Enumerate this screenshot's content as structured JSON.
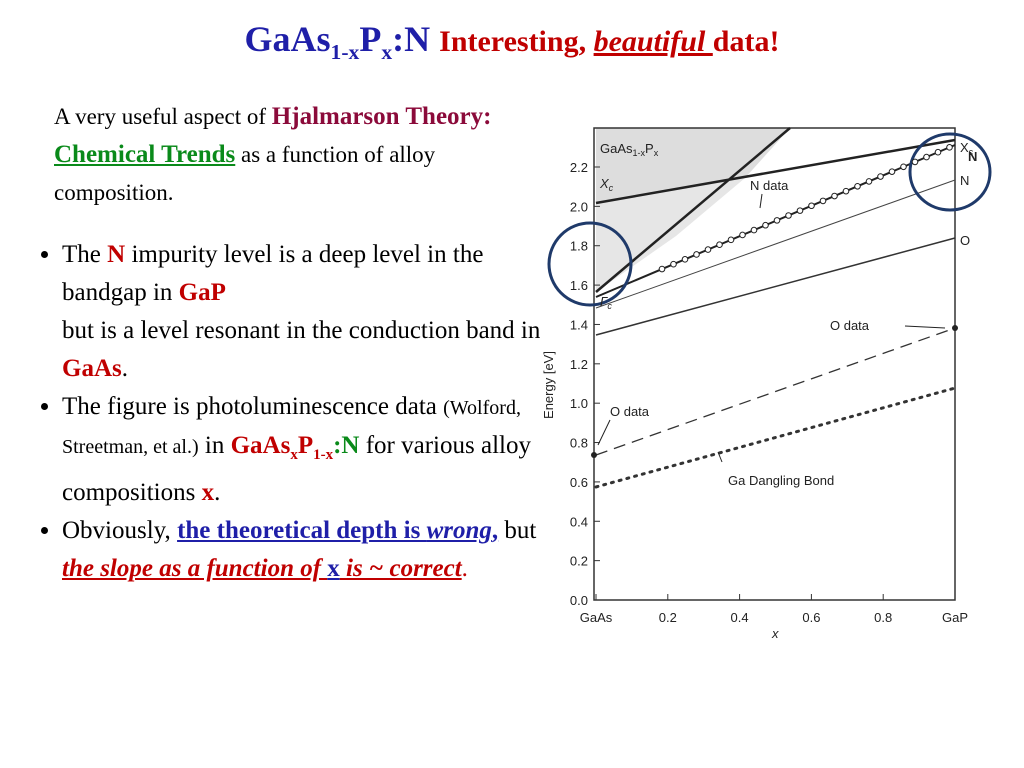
{
  "title": {
    "parts": [
      "GaAs",
      "1-x",
      "P",
      "x",
      ":N",
      "Interesting, ",
      "beautiful ",
      "data!"
    ]
  },
  "intro": {
    "parts": [
      "A very useful aspect of ",
      "Hjalmarson Theory:",
      " ",
      "Chemical Trends",
      " as a function of alloy composition."
    ]
  },
  "bullets": [
    [
      "The ",
      "N",
      " impurity level is a deep level in the bandgap in ",
      "GaP",
      "but is a level resonant in the conduction band in ",
      "GaAs",
      "."
    ],
    [
      "The figure is photoluminescence data ",
      "(Wolford, Streetman, et al.)",
      " in ",
      "GaAs",
      "x",
      "P",
      "1-x",
      ":N",
      " for various alloy compositions ",
      "x",
      "."
    ],
    [
      "Obviously, ",
      "the theoretical depth is ",
      "wrong",
      ",",
      " but ",
      "the slope as a function of ",
      "x",
      " is ~ correct",
      "."
    ]
  ],
  "figure": {
    "yticks": [
      "0.0",
      "0.2",
      "0.4",
      "0.6",
      "0.8",
      "1.0",
      "1.2",
      "1.4",
      "1.6",
      "1.8",
      "2.0",
      "2.2"
    ],
    "xticks": [
      "GaAs",
      "0.2",
      "0.4",
      "0.6",
      "0.8",
      "GaP"
    ],
    "ylabel": "Energy  [eV]",
    "xlabel": "x",
    "inner_title": [
      "GaAs",
      "1-x",
      "P",
      "x"
    ],
    "labels": {
      "xc_left": "X",
      "xc_left_sub": "c",
      "gamma": "Γ",
      "gamma_sub": "c",
      "n_data": "N data",
      "o_data_right": "O data",
      "o_data_left": "O data",
      "dangling": "Ga Dangling Bond",
      "xc_right": "X",
      "xc_right_sub": "c",
      "n_right": "N",
      "n_right_big": "N",
      "o_right": "O"
    }
  }
}
